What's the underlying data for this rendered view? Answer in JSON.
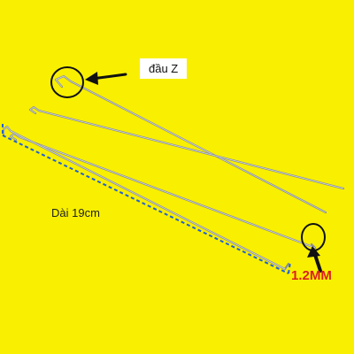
{
  "labels": {
    "end_type": "đầu Z",
    "length": "Dài 19cm",
    "diameter": "1.2MM"
  },
  "colors": {
    "background": "#f8f000",
    "rod": "#8a8f92",
    "rod_highlight": "#d9dcdd",
    "marker_circle": "#111111",
    "arrow": "#111111",
    "dimension_line": "#1f5fd8",
    "diameter_text": "#dd1f1f"
  }
}
